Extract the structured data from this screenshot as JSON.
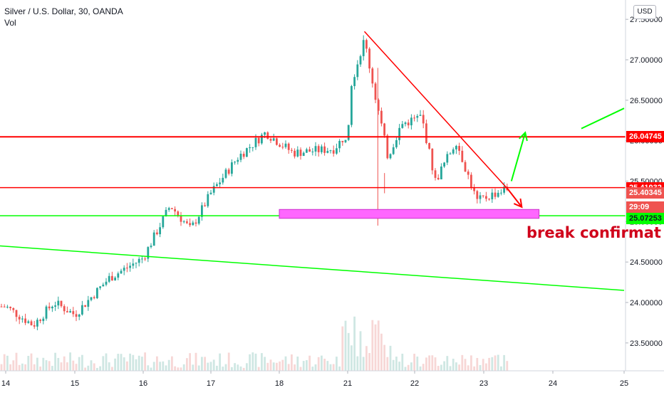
{
  "legend": {
    "title": "Silver / U.S. Dollar, 30, OANDA",
    "volume_label": "Vol"
  },
  "currency_button": "USD",
  "annotation_text": "break confirmat",
  "colors": {
    "up": "#26a69a",
    "down": "#ef5350",
    "red_line": "#ff0000",
    "green_line": "#00ff00",
    "support_box": "#ff66ff",
    "axis_text": "#131722",
    "volume_up": "#cfe7e3",
    "volume_down": "#f7d7d6"
  },
  "chart_data": {
    "type": "candlestick",
    "symbol": "XAGUSD",
    "title": "Silver / U.S. Dollar, 30, OANDA",
    "timeframe": "30",
    "source": "OANDA",
    "y_axis": {
      "position": "right",
      "tick_labels": [
        "23.50000",
        "24.00000",
        "24.50000",
        "25.00000",
        "25.50000",
        "26.00000",
        "26.50000",
        "27.00000",
        "27.50000"
      ],
      "ylim": [
        23.2,
        27.6
      ]
    },
    "x_axis": {
      "tick_labels": [
        "14",
        "15",
        "16",
        "17",
        "18",
        "21",
        "22",
        "23",
        "24",
        "25"
      ]
    },
    "anchors": [
      {
        "day": "14",
        "price": 23.95
      },
      {
        "day": "14.4",
        "price": 23.72
      },
      {
        "day": "14.7",
        "price": 24.0
      },
      {
        "day": "15",
        "price": 23.85
      },
      {
        "day": "15.5",
        "price": 24.3
      },
      {
        "day": "16",
        "price": 24.55
      },
      {
        "day": "16.4",
        "price": 25.2
      },
      {
        "day": "16.7",
        "price": 24.9
      },
      {
        "day": "17",
        "price": 25.35
      },
      {
        "day": "17.4",
        "price": 25.8
      },
      {
        "day": "17.8",
        "price": 26.1
      },
      {
        "day": "18.2",
        "price": 25.85
      },
      {
        "day": "18.8",
        "price": 25.9
      },
      {
        "day": "21",
        "price": 26.1
      },
      {
        "day": "21.05",
        "price": 26.7
      },
      {
        "day": "21.25",
        "price": 27.25
      },
      {
        "day": "21.4",
        "price": 26.6
      },
      {
        "day": "21.6",
        "price": 25.8
      },
      {
        "day": "21.8",
        "price": 26.2
      },
      {
        "day": "22.1",
        "price": 26.3
      },
      {
        "day": "22.3",
        "price": 25.5
      },
      {
        "day": "22.6",
        "price": 26.0
      },
      {
        "day": "22.9",
        "price": 25.25
      },
      {
        "day": "23.3",
        "price": 25.4
      }
    ],
    "horizontal_levels": [
      {
        "label": "26.04745",
        "price": 26.04745,
        "color": "#ff0000"
      },
      {
        "label": "25.41932",
        "price": 25.41932,
        "color": "#ff0000"
      },
      {
        "label": "25.40345",
        "price": 25.40345,
        "color": "#ef5350"
      },
      {
        "label": "25.07253",
        "price": 25.07253,
        "color": "#00ff00"
      }
    ],
    "countdown_label": "29:09",
    "support_zone": {
      "from_day": "18.0",
      "to_day": "23.8",
      "price_low": 25.04,
      "price_high": 25.15
    },
    "descending_trendline": {
      "from": {
        "day": "21.25",
        "price": 27.35
      },
      "to": {
        "day": "23.35",
        "price": 25.4
      }
    },
    "green_trendline": {
      "from": {
        "day": "13.9",
        "price": 24.7
      },
      "to": {
        "day": "25.0",
        "price": 24.15
      }
    },
    "green_trend_segment": {
      "from": {
        "day": "24.4",
        "price": 26.15
      },
      "to": {
        "day": "25.0",
        "price": 26.4
      }
    },
    "projection_arrow": {
      "from": {
        "day": "23.4",
        "price": 25.5
      },
      "to": {
        "day": "23.6",
        "price": 26.1
      }
    },
    "down_arrow": {
      "from": {
        "day": "23.35",
        "price": 25.4
      },
      "to": {
        "day": "23.55",
        "price": 25.18
      }
    }
  }
}
